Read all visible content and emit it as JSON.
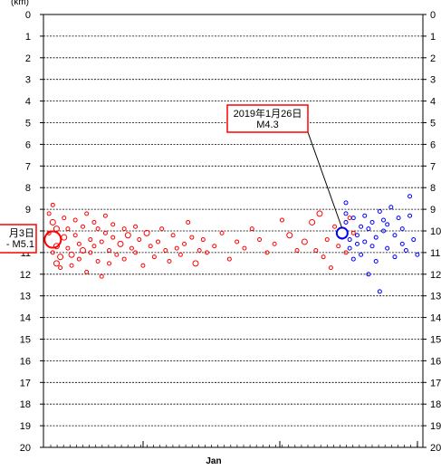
{
  "chart_data": {
    "type": "scatter",
    "title": "",
    "ylabel": "(km)",
    "xlabel": "Jan",
    "ylim": [
      0,
      20
    ],
    "y_inverted": true,
    "yticks": [
      "0",
      "1",
      "2",
      "3",
      "4",
      "5",
      "6",
      "7",
      "8",
      "9",
      "10",
      "11",
      "12",
      "13",
      "14",
      "15",
      "16",
      "17",
      "18",
      "19",
      "20"
    ],
    "grid": "horizontal-dashed",
    "colors": {
      "series_a": "#ff0000",
      "series_b": "#0000ff",
      "frame": "#000000"
    },
    "annotations": [
      {
        "name": "annotation-left",
        "text_lines": [
          "月3日",
          "- M5.1"
        ],
        "color": "#ff0000",
        "depth": 10.4
      },
      {
        "name": "annotation-right",
        "text_lines": [
          "2019年1月26日",
          "M4.3"
        ],
        "color": "#ff0000",
        "depth": 10.1
      }
    ],
    "series": [
      {
        "color": "#ff0000",
        "points": [
          [
            0.02,
            10.4,
            9
          ],
          [
            0.01,
            9.2,
            2
          ],
          [
            0.02,
            8.8,
            2
          ],
          [
            0.02,
            9.6,
            3
          ],
          [
            0.03,
            9.9,
            3
          ],
          [
            0.03,
            10.7,
            3
          ],
          [
            0.04,
            11.2,
            3
          ],
          [
            0.04,
            11.7,
            2
          ],
          [
            0.01,
            10.1,
            2
          ],
          [
            0.02,
            11.0,
            2
          ],
          [
            0.03,
            11.5,
            3
          ],
          [
            0.05,
            10.3,
            3
          ],
          [
            0.05,
            9.4,
            2
          ],
          [
            0.06,
            9.9,
            2
          ],
          [
            0.06,
            10.8,
            2
          ],
          [
            0.07,
            11.6,
            2
          ],
          [
            0.07,
            11.1,
            3
          ],
          [
            0.08,
            9.5,
            2
          ],
          [
            0.08,
            10.2,
            2
          ],
          [
            0.09,
            10.6,
            2
          ],
          [
            0.09,
            11.3,
            2
          ],
          [
            0.1,
            9.8,
            2
          ],
          [
            0.1,
            10.9,
            3
          ],
          [
            0.11,
            11.9,
            2
          ],
          [
            0.11,
            9.2,
            2
          ],
          [
            0.12,
            10.4,
            2
          ],
          [
            0.12,
            11.0,
            2
          ],
          [
            0.13,
            9.6,
            2
          ],
          [
            0.13,
            10.7,
            2
          ],
          [
            0.14,
            11.4,
            2
          ],
          [
            0.14,
            9.9,
            2
          ],
          [
            0.15,
            10.5,
            2
          ],
          [
            0.15,
            12.1,
            2
          ],
          [
            0.16,
            9.3,
            2
          ],
          [
            0.16,
            10.1,
            2
          ],
          [
            0.17,
            10.9,
            2
          ],
          [
            0.17,
            11.5,
            2
          ],
          [
            0.18,
            10.3,
            2
          ],
          [
            0.18,
            9.7,
            2
          ],
          [
            0.19,
            11.1,
            2
          ],
          [
            0.2,
            10.6,
            3
          ],
          [
            0.21,
            9.9,
            2
          ],
          [
            0.21,
            11.3,
            2
          ],
          [
            0.22,
            10.2,
            3
          ],
          [
            0.23,
            10.8,
            2
          ],
          [
            0.24,
            11.0,
            2
          ],
          [
            0.24,
            9.8,
            2
          ],
          [
            0.25,
            10.4,
            2
          ],
          [
            0.26,
            11.6,
            2
          ],
          [
            0.27,
            10.1,
            3
          ],
          [
            0.28,
            10.7,
            2
          ],
          [
            0.29,
            11.2,
            2
          ],
          [
            0.3,
            10.5,
            2
          ],
          [
            0.31,
            9.9,
            2
          ],
          [
            0.32,
            10.9,
            2
          ],
          [
            0.33,
            11.4,
            2
          ],
          [
            0.34,
            10.2,
            2
          ],
          [
            0.35,
            10.8,
            2
          ],
          [
            0.36,
            11.1,
            2
          ],
          [
            0.37,
            10.6,
            2
          ],
          [
            0.38,
            9.6,
            2
          ],
          [
            0.39,
            10.3,
            2
          ],
          [
            0.4,
            11.5,
            3
          ],
          [
            0.41,
            10.9,
            2
          ],
          [
            0.42,
            10.4,
            2
          ],
          [
            0.43,
            11.0,
            2
          ],
          [
            0.45,
            10.7,
            2
          ],
          [
            0.47,
            10.1,
            2
          ],
          [
            0.49,
            11.3,
            2
          ],
          [
            0.51,
            10.5,
            2
          ],
          [
            0.53,
            10.8,
            2
          ],
          [
            0.55,
            9.9,
            2
          ],
          [
            0.57,
            10.4,
            2
          ],
          [
            0.59,
            11.0,
            2
          ],
          [
            0.61,
            10.6,
            2
          ],
          [
            0.63,
            9.5,
            2
          ],
          [
            0.65,
            10.2,
            3
          ],
          [
            0.67,
            10.9,
            2
          ],
          [
            0.69,
            10.5,
            3
          ],
          [
            0.71,
            9.6,
            3
          ],
          [
            0.72,
            10.9,
            2
          ],
          [
            0.73,
            9.2,
            3
          ],
          [
            0.74,
            11.2,
            2
          ],
          [
            0.75,
            10.4,
            2
          ],
          [
            0.76,
            11.7,
            2
          ],
          [
            0.77,
            9.8,
            2
          ],
          [
            0.78,
            10.7,
            2
          ],
          [
            0.79,
            10.3,
            2
          ],
          [
            0.8,
            11.0,
            2
          ],
          [
            0.81,
            9.4,
            2
          ],
          [
            0.82,
            10.1,
            2
          ]
        ]
      },
      {
        "color": "#0000ff",
        "points": [
          [
            0.79,
            10.1,
            6
          ],
          [
            0.8,
            8.7,
            2
          ],
          [
            0.8,
            9.2,
            2
          ],
          [
            0.8,
            9.6,
            2
          ],
          [
            0.81,
            10.4,
            2
          ],
          [
            0.81,
            10.8,
            2
          ],
          [
            0.82,
            11.3,
            2
          ],
          [
            0.82,
            9.4,
            2
          ],
          [
            0.83,
            10.2,
            2
          ],
          [
            0.83,
            10.6,
            2
          ],
          [
            0.84,
            9.8,
            2
          ],
          [
            0.84,
            11.1,
            2
          ],
          [
            0.85,
            9.3,
            2
          ],
          [
            0.85,
            10.5,
            2
          ],
          [
            0.86,
            12.0,
            2
          ],
          [
            0.86,
            9.9,
            2
          ],
          [
            0.87,
            10.7,
            2
          ],
          [
            0.87,
            9.6,
            2
          ],
          [
            0.88,
            10.3,
            2
          ],
          [
            0.88,
            11.4,
            2
          ],
          [
            0.89,
            9.1,
            2
          ],
          [
            0.89,
            12.8,
            2
          ],
          [
            0.9,
            10.0,
            2
          ],
          [
            0.9,
            9.5,
            2
          ],
          [
            0.91,
            10.8,
            2
          ],
          [
            0.91,
            9.7,
            2
          ],
          [
            0.92,
            8.9,
            2
          ],
          [
            0.93,
            10.2,
            2
          ],
          [
            0.93,
            11.2,
            2
          ],
          [
            0.94,
            9.4,
            2
          ],
          [
            0.95,
            10.6,
            2
          ],
          [
            0.95,
            9.9,
            2
          ],
          [
            0.96,
            10.9,
            2
          ],
          [
            0.97,
            9.3,
            2
          ],
          [
            0.97,
            8.4,
            2
          ],
          [
            0.98,
            10.4,
            2
          ],
          [
            0.99,
            11.1,
            2
          ]
        ]
      }
    ]
  }
}
